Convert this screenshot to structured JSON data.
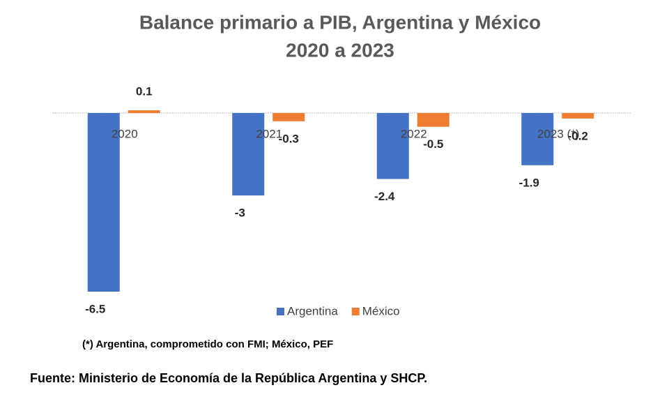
{
  "chart_data": {
    "type": "bar",
    "title": "Balance primario a PIB, Argentina y México",
    "subtitle": "2020 a 2023",
    "categories": [
      "2020",
      "2021",
      "2022",
      "2023 (*)"
    ],
    "series": [
      {
        "name": "Argentina",
        "color": "#4472c4",
        "values": [
          -6.5,
          -3,
          -2.4,
          -1.9
        ]
      },
      {
        "name": "México",
        "color": "#ed7d31",
        "values": [
          0.1,
          -0.3,
          -0.5,
          -0.2
        ]
      }
    ],
    "legend": "bottom",
    "note": "(*) Argentina, comprometido con FMI; México, PEF",
    "source": "Fuente: Ministerio de Economía de la República Argentina y SHCP."
  }
}
